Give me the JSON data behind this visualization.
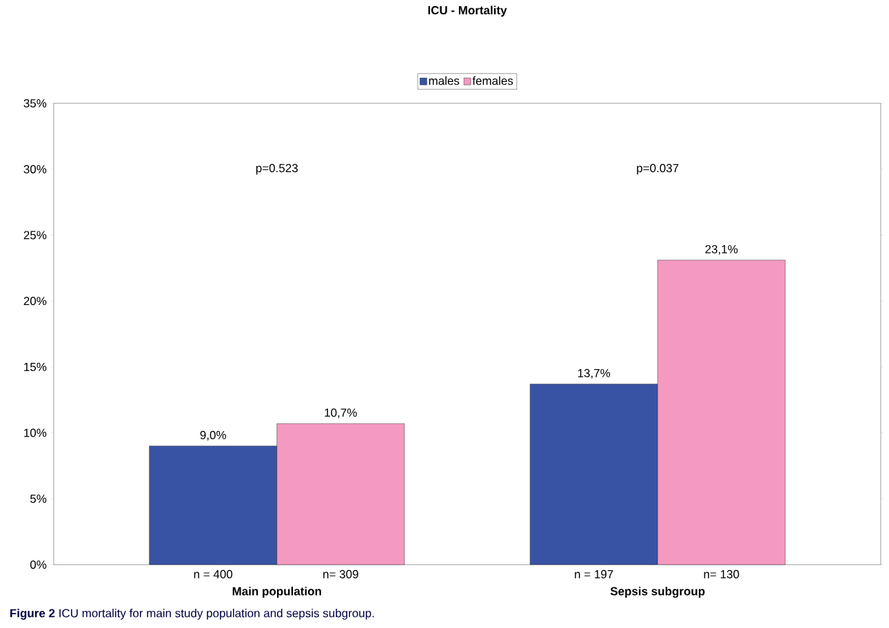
{
  "chart_data": {
    "type": "bar",
    "title": "ICU - Mortality",
    "categories": [
      "Main population",
      "Sepsis subgroup"
    ],
    "series": [
      {
        "name": "males",
        "color": "#3953a4",
        "values": [
          9.0,
          13.7
        ],
        "value_labels": [
          "9,0%",
          "13,7%"
        ]
      },
      {
        "name": "females",
        "color": "#f49ac1",
        "values": [
          10.7,
          23.1
        ],
        "value_labels": [
          "10,7%",
          "23,1%"
        ]
      }
    ],
    "ylim": [
      0,
      35
    ],
    "yticks": [
      {
        "value": 0,
        "label": "0%"
      },
      {
        "value": 5,
        "label": "5%"
      },
      {
        "value": 10,
        "label": "10%"
      },
      {
        "value": 15,
        "label": "15%"
      },
      {
        "value": 20,
        "label": "20%"
      },
      {
        "value": 25,
        "label": "25%"
      },
      {
        "value": 30,
        "label": "30%"
      },
      {
        "value": 35,
        "label": "35%"
      }
    ],
    "legend": "top",
    "annotations": [
      "p=0.523",
      "p=0.037",
      "n = 400",
      "n= 309",
      "n = 197",
      "n= 130",
      "**Figure 2** ICU mortality for main study population and sepsis subgroup."
    ]
  }
}
